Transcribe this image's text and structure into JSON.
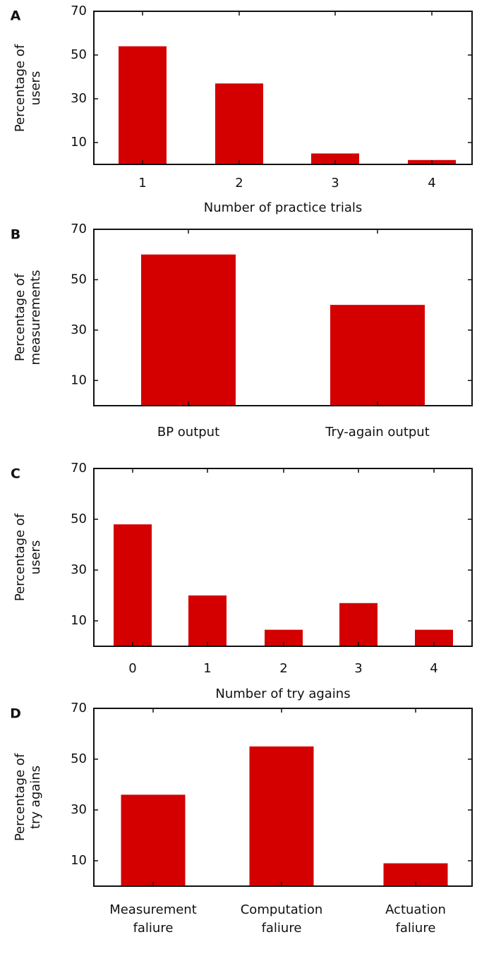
{
  "colors": {
    "bar": "#d40000",
    "axis": "#111111"
  },
  "chart_data": [
    {
      "panel": "A",
      "type": "bar",
      "categories": [
        "1",
        "2",
        "3",
        "4"
      ],
      "values": [
        54,
        37,
        5,
        2
      ],
      "ylabel": [
        "Percentage of",
        "users"
      ],
      "xlabel": "Number of practice trials",
      "ylim": [
        0,
        70
      ],
      "yticks": [
        10,
        30,
        50,
        70
      ],
      "grid": false
    },
    {
      "panel": "B",
      "type": "bar",
      "categories": [
        "BP output",
        "Try-again output"
      ],
      "values": [
        60,
        40
      ],
      "ylabel": [
        "Percentage of",
        "measurements"
      ],
      "xlabel": "",
      "ylim": [
        0,
        70
      ],
      "yticks": [
        10,
        30,
        50,
        70
      ],
      "grid": false
    },
    {
      "panel": "C",
      "type": "bar",
      "categories": [
        "0",
        "1",
        "2",
        "3",
        "4"
      ],
      "values": [
        48,
        20,
        6.5,
        17,
        6.5
      ],
      "ylabel": [
        "Percentage of",
        "users"
      ],
      "xlabel": "Number of try agains",
      "ylim": [
        0,
        70
      ],
      "yticks": [
        10,
        30,
        50,
        70
      ],
      "grid": false
    },
    {
      "panel": "D",
      "type": "bar",
      "categories": [
        [
          "Measurement",
          "faliure"
        ],
        [
          "Computation",
          "faliure"
        ],
        [
          "Actuation",
          "faliure"
        ]
      ],
      "values": [
        36,
        55,
        9
      ],
      "ylabel": [
        "Percentage of",
        "try agains"
      ],
      "xlabel": "",
      "ylim": [
        0,
        70
      ],
      "yticks": [
        10,
        30,
        50,
        70
      ],
      "grid": false
    }
  ]
}
